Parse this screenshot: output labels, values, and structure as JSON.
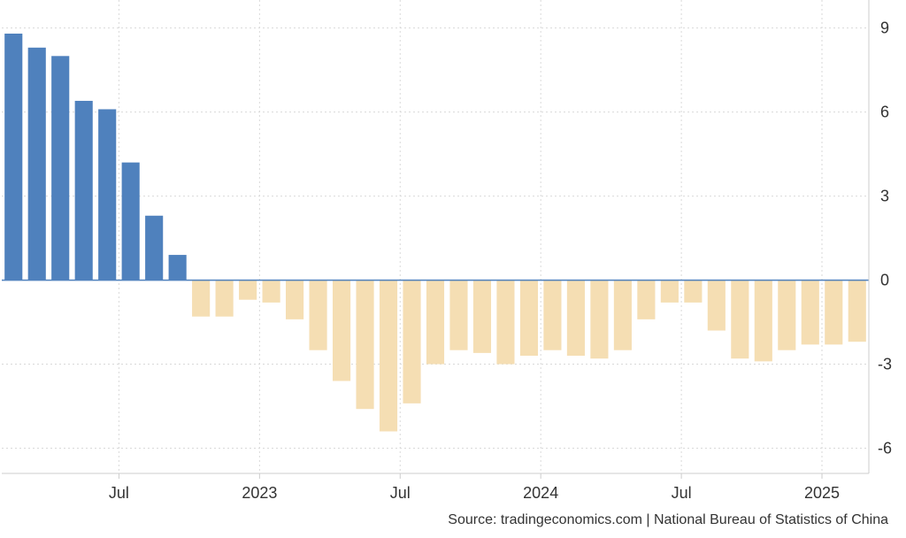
{
  "source": "Source: tradingeconomics.com | National Bureau of Statistics of China",
  "colors": {
    "positive": "#4f81bd",
    "negative": "#f5deb3",
    "grid": "#d9d9d9",
    "axis": "#cccccc"
  },
  "chart_data": {
    "type": "bar",
    "title": "",
    "xlabel": "",
    "ylabel": "",
    "ylim": [
      -6.9,
      10
    ],
    "grid": true,
    "y_axis_position": "right",
    "yticks": [
      9,
      6,
      3,
      0,
      -3,
      -6
    ],
    "yticklabels": [
      "9",
      "6",
      "3",
      "0",
      "-3",
      "-6"
    ],
    "xticklabels": [
      {
        "label": "Jul",
        "date": "2022-07"
      },
      {
        "label": "2023",
        "date": "2023-01"
      },
      {
        "label": "Jul",
        "date": "2023-07"
      },
      {
        "label": "2024",
        "date": "2024-01"
      },
      {
        "label": "Jul",
        "date": "2024-07"
      },
      {
        "label": "2025",
        "date": "2025-01"
      }
    ],
    "categories": [
      "2022-02",
      "2022-03",
      "2022-04",
      "2022-05",
      "2022-06",
      "2022-07",
      "2022-08",
      "2022-09",
      "2022-10",
      "2022-11",
      "2022-12",
      "2023-01",
      "2023-02",
      "2023-03",
      "2023-04",
      "2023-05",
      "2023-06",
      "2023-07",
      "2023-08",
      "2023-09",
      "2023-10",
      "2023-11",
      "2023-12",
      "2024-01",
      "2024-02",
      "2024-03",
      "2024-04",
      "2024-05",
      "2024-06",
      "2024-07",
      "2024-08",
      "2024-09",
      "2024-10",
      "2024-11",
      "2024-12",
      "2025-01",
      "2025-02"
    ],
    "values": [
      8.8,
      8.3,
      8.0,
      6.4,
      6.1,
      4.2,
      2.3,
      0.9,
      -1.3,
      -1.3,
      -0.7,
      -0.8,
      -1.4,
      -2.5,
      -3.6,
      -4.6,
      -5.4,
      -4.4,
      -3.0,
      -2.5,
      -2.6,
      -3.0,
      -2.7,
      -2.5,
      -2.7,
      -2.8,
      -2.5,
      -1.4,
      -0.8,
      -0.8,
      -1.8,
      -2.8,
      -2.9,
      -2.5,
      -2.3,
      -2.3,
      -2.2
    ]
  }
}
